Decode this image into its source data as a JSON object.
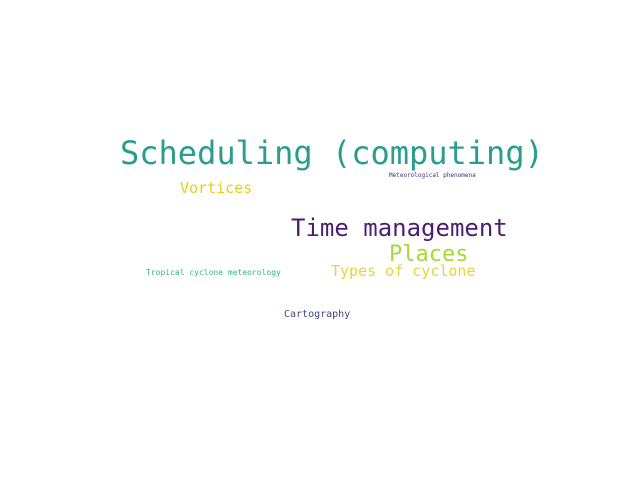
{
  "background_color": "#ffffff",
  "words": [
    {
      "id": "scheduling",
      "text": "Scheduling (computing)",
      "color": "#2a9d8f"
    },
    {
      "id": "time_management",
      "text": "Time management",
      "color": "#4b1f6f"
    },
    {
      "id": "places",
      "text": "Places",
      "color": "#a4d93a"
    },
    {
      "id": "vortices",
      "text": "Vortices",
      "color": "#e3d018"
    },
    {
      "id": "types_of_cyclone",
      "text": "Types of cyclone",
      "color": "#e8d43a"
    },
    {
      "id": "cartography",
      "text": "Cartography",
      "color": "#3e4989"
    },
    {
      "id": "tropical_cyclone_meteorology",
      "text": "Tropical cyclone meteorology",
      "color": "#35b779"
    },
    {
      "id": "meteorological_phenomena",
      "text": "Meteorological phenomena",
      "color": "#472d7b"
    }
  ]
}
